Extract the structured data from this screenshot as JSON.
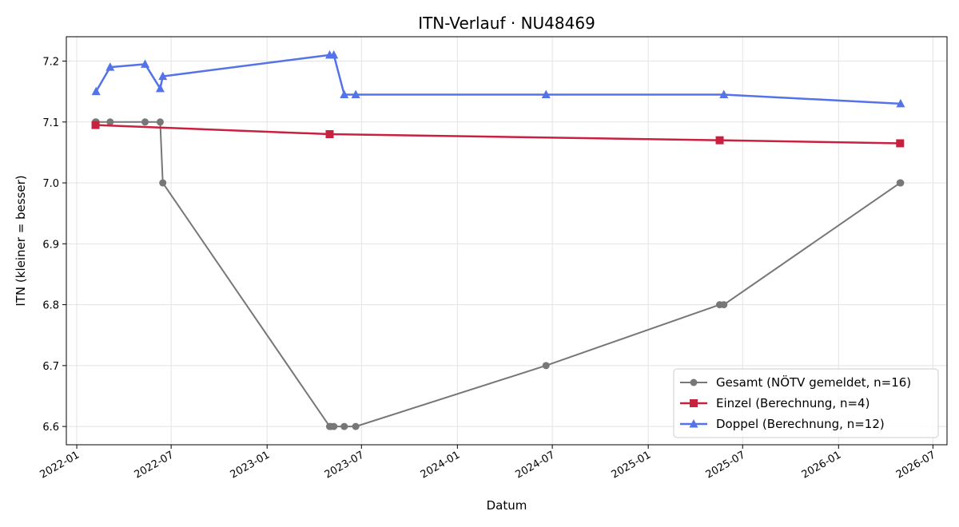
{
  "chart_data": {
    "type": "line",
    "title": "ITN-Verlauf · NU48469",
    "xlabel": "Datum",
    "ylabel": "ITN  (kleiner = besser)",
    "x_is_date": true,
    "xlim": [
      "2021-12-12",
      "2026-07-28"
    ],
    "ylim": [
      6.57,
      7.24
    ],
    "x_ticks": [
      "2022-01",
      "2022-07",
      "2023-01",
      "2023-07",
      "2024-01",
      "2024-07",
      "2025-01",
      "2025-07",
      "2026-01",
      "2026-07"
    ],
    "y_ticks": [
      "6.6",
      "6.7",
      "6.8",
      "6.9",
      "7.0",
      "7.1",
      "7.2"
    ],
    "grid": true,
    "legend_position": "lower-right",
    "series": [
      {
        "name": "Gesamt (NÖTV gemeldet, n=16)",
        "color": "#777777",
        "marker": "circle",
        "points": [
          {
            "x": "2022-02-06",
            "y": 7.1
          },
          {
            "x": "2022-02-07",
            "y": 7.1
          },
          {
            "x": "2022-03-06",
            "y": 7.1
          },
          {
            "x": "2022-05-12",
            "y": 7.1
          },
          {
            "x": "2022-06-10",
            "y": 7.1
          },
          {
            "x": "2022-06-15",
            "y": 7.0
          },
          {
            "x": "2023-05-01",
            "y": 6.6
          },
          {
            "x": "2023-05-03",
            "y": 6.6
          },
          {
            "x": "2023-05-09",
            "y": 6.6
          },
          {
            "x": "2023-05-29",
            "y": 6.6
          },
          {
            "x": "2023-06-20",
            "y": 6.6
          },
          {
            "x": "2024-06-19",
            "y": 6.7
          },
          {
            "x": "2025-05-18",
            "y": 6.8
          },
          {
            "x": "2025-05-26",
            "y": 6.8
          },
          {
            "x": "2026-04-29",
            "y": 7.0
          },
          {
            "x": "2026-04-30",
            "y": 7.0
          }
        ]
      },
      {
        "name": "Einzel (Berechnung, n=4)",
        "color": "#c8213f",
        "marker": "square",
        "points": [
          {
            "x": "2022-02-06",
            "y": 7.095
          },
          {
            "x": "2023-05-01",
            "y": 7.08
          },
          {
            "x": "2025-05-18",
            "y": 7.07
          },
          {
            "x": "2026-04-29",
            "y": 7.065
          }
        ]
      },
      {
        "name": "Doppel (Berechnung, n=12)",
        "color": "#5473e8",
        "marker": "triangle",
        "points": [
          {
            "x": "2022-02-07",
            "y": 7.15
          },
          {
            "x": "2022-03-06",
            "y": 7.19
          },
          {
            "x": "2022-05-12",
            "y": 7.195
          },
          {
            "x": "2022-06-10",
            "y": 7.155
          },
          {
            "x": "2022-06-15",
            "y": 7.175
          },
          {
            "x": "2023-05-01",
            "y": 7.21
          },
          {
            "x": "2023-05-09",
            "y": 7.21
          },
          {
            "x": "2023-05-29",
            "y": 7.145
          },
          {
            "x": "2023-06-20",
            "y": 7.145
          },
          {
            "x": "2024-06-19",
            "y": 7.145
          },
          {
            "x": "2025-05-26",
            "y": 7.145
          },
          {
            "x": "2026-04-30",
            "y": 7.13
          }
        ]
      }
    ]
  }
}
